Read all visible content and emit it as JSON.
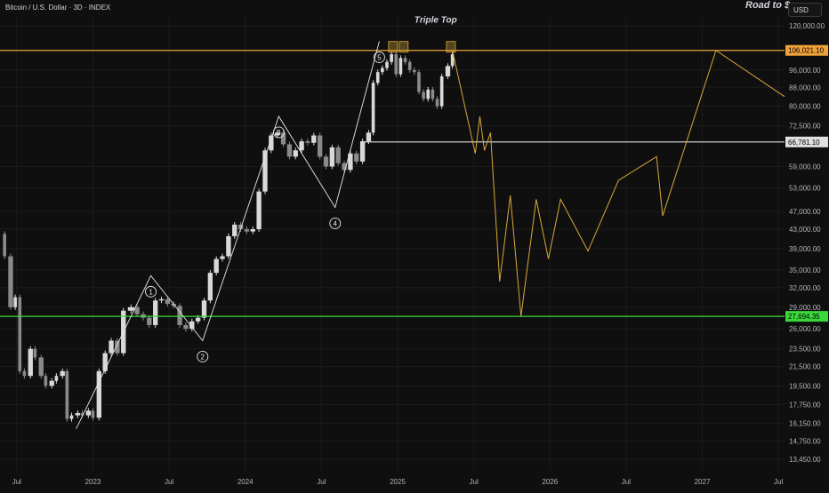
{
  "header": {
    "symbol": "Bitcoin / U.S. Dollar · 3D · INDEX",
    "corner_title": "Road to $",
    "currency_button": "USD"
  },
  "colors": {
    "background": "#0f0f0f",
    "candle_up": "#d9d9d9",
    "candle_down": "#8a8a8a",
    "wave_line": "#e6e6e6",
    "projection": "#d8a93a",
    "resistance": "#f0a23a",
    "support_mid": "#e0e0e0",
    "support_low": "#3ad83a"
  },
  "chart_data": {
    "type": "line",
    "title": "",
    "xlabel": "",
    "ylabel": "",
    "y_scale": "log",
    "y_ticks": [
      "120,000.00",
      "96,000.00",
      "88,000.00",
      "80,000.00",
      "72,500.00",
      "59,000.00",
      "53,000.00",
      "47,000.00",
      "43,000.00",
      "39,000.00",
      "35,000.00",
      "32,000.00",
      "29,000.00",
      "26,000.00",
      "23,500.00",
      "21,500.00",
      "19,500.00",
      "17,750.00",
      "16,150.00",
      "14,750.00",
      "13,450.00"
    ],
    "x_ticks": [
      "Jul",
      "2023",
      "Jul",
      "2024",
      "Jul",
      "2025",
      "Jul",
      "2026",
      "Jul",
      "2027",
      "Jul"
    ],
    "x_tick_dates": [
      2022.5,
      2023.0,
      2023.5,
      2024.0,
      2024.5,
      2025.0,
      2025.5,
      2026.0,
      2026.5,
      2027.0,
      2027.5
    ],
    "x_range": [
      2022.39,
      2027.54
    ],
    "y_range": [
      12700,
      125000
    ],
    "price_lines": [
      {
        "label": "106,021.10",
        "value": 106021.1,
        "color": "#f0a23a",
        "from": 2022.39
      },
      {
        "label": "66,781.10",
        "value": 66781.1,
        "color": "#e0e0e0",
        "from": 2024.77
      },
      {
        "label": "27,694.35",
        "value": 27694.35,
        "color": "#3ad83a",
        "from": 2022.39
      }
    ],
    "annotations": [
      {
        "label": "Triple Top",
        "date": 2025.25,
        "value": 122000
      }
    ],
    "highlight_boxes": [
      {
        "date": 2024.97,
        "value": 106021.1
      },
      {
        "date": 2025.04,
        "value": 106021.1
      },
      {
        "date": 2025.35,
        "value": 106021.1
      }
    ],
    "elliott_waves": {
      "points": [
        {
          "date": 2022.89,
          "value": 15700,
          "label": ""
        },
        {
          "date": 2023.38,
          "value": 34000,
          "label": "1"
        },
        {
          "date": 2023.72,
          "value": 24500,
          "label": "2"
        },
        {
          "date": 2024.22,
          "value": 76000,
          "label": "3"
        },
        {
          "date": 2024.59,
          "value": 48000,
          "label": "4"
        },
        {
          "date": 2024.88,
          "value": 111000,
          "label": "5"
        }
      ]
    },
    "projection": [
      {
        "date": 2025.36,
        "value": 106021
      },
      {
        "date": 2025.51,
        "value": 63000
      },
      {
        "date": 2025.54,
        "value": 76000
      },
      {
        "date": 2025.57,
        "value": 64000
      },
      {
        "date": 2025.61,
        "value": 70000
      },
      {
        "date": 2025.67,
        "value": 33000
      },
      {
        "date": 2025.74,
        "value": 51000
      },
      {
        "date": 2025.81,
        "value": 27694
      },
      {
        "date": 2025.91,
        "value": 50000
      },
      {
        "date": 2025.99,
        "value": 37000
      },
      {
        "date": 2026.07,
        "value": 50000
      },
      {
        "date": 2026.25,
        "value": 38500
      },
      {
        "date": 2026.45,
        "value": 55000
      },
      {
        "date": 2026.7,
        "value": 62000
      },
      {
        "date": 2026.74,
        "value": 46000
      },
      {
        "date": 2027.09,
        "value": 106021
      },
      {
        "date": 2027.54,
        "value": 84000
      }
    ],
    "series": [
      {
        "dates": [
          2022.39,
          2022.42,
          2022.46,
          2022.49,
          2022.52,
          2022.55,
          2022.59,
          2022.62,
          2022.66,
          2022.69,
          2022.73,
          2022.76,
          2022.8,
          2022.83,
          2022.86,
          2022.9,
          2022.93,
          2022.97,
          2023.0,
          2023.04,
          2023.08,
          2023.12,
          2023.16,
          2023.2,
          2023.25,
          2023.29,
          2023.33,
          2023.37,
          2023.41,
          2023.45,
          2023.49,
          2023.53,
          2023.57,
          2023.61,
          2023.65,
          2023.69,
          2023.73,
          2023.77,
          2023.81,
          2023.85,
          2023.89,
          2023.93,
          2023.97,
          2024.01,
          2024.05,
          2024.09,
          2024.13,
          2024.17,
          2024.21,
          2024.25,
          2024.29,
          2024.33,
          2024.37,
          2024.41,
          2024.45,
          2024.49,
          2024.53,
          2024.57,
          2024.61,
          2024.65,
          2024.69,
          2024.73,
          2024.77,
          2024.81,
          2024.84,
          2024.87,
          2024.9,
          2024.93,
          2024.96,
          2024.99,
          2025.02,
          2025.05,
          2025.08,
          2025.11,
          2025.14,
          2025.17,
          2025.2,
          2025.23,
          2025.26,
          2025.29,
          2025.33,
          2025.36
        ],
        "close": [
          42000,
          37500,
          29000,
          30500,
          21000,
          20500,
          23500,
          22500,
          20500,
          19500,
          20000,
          20500,
          21000,
          16500,
          16800,
          17000,
          16800,
          17200,
          16600,
          21000,
          23000,
          24500,
          23000,
          28500,
          29000,
          28000,
          27500,
          26500,
          30000,
          30200,
          29500,
          29200,
          26500,
          26000,
          27000,
          27500,
          30000,
          34500,
          37000,
          37500,
          41500,
          44000,
          43000,
          42500,
          43000,
          52000,
          64000,
          69000,
          70000,
          66000,
          62000,
          64000,
          67000,
          66500,
          69000,
          62000,
          59000,
          65000,
          60000,
          58000,
          63000,
          60500,
          67000,
          70000,
          90000,
          95000,
          97000,
          100000,
          104000,
          94000,
          102000,
          100000,
          96000,
          95000,
          86000,
          83000,
          87000,
          83000,
          80000,
          93000,
          98000,
          104000
        ],
        "ticks": [
          2022.39,
          2022.42,
          2022.46,
          2022.49,
          2022.52,
          2022.55,
          2022.59,
          2022.62,
          2022.66,
          2022.69,
          2022.73,
          2022.76,
          2022.8,
          2022.83,
          2022.86,
          2022.9,
          2022.93,
          2022.97,
          2023.0,
          2023.04,
          2023.08,
          2023.12,
          2023.16,
          2023.2,
          2023.25,
          2023.29,
          2023.33,
          2023.37,
          2023.41,
          2023.45,
          2023.49,
          2023.53,
          2023.57,
          2023.61,
          2023.65,
          2023.69,
          2023.73,
          2023.77,
          2023.81,
          2023.85,
          2023.89,
          2023.93,
          2023.97,
          2024.01,
          2024.05,
          2024.09,
          2024.13,
          2024.17,
          2024.21,
          2024.25,
          2024.29,
          2024.33,
          2024.37,
          2024.41,
          2024.45,
          2024.49,
          2024.53,
          2024.57,
          2024.61,
          2024.65,
          2024.69,
          2024.73,
          2024.77,
          2024.81,
          2024.84,
          2024.87,
          2024.9,
          2024.93,
          2024.96,
          2024.99,
          2025.02,
          2025.05,
          2025.08,
          2025.11,
          2025.14,
          2025.17,
          2025.2,
          2025.23,
          2025.26,
          2025.29,
          2025.33,
          2025.36
        ]
      }
    ]
  }
}
